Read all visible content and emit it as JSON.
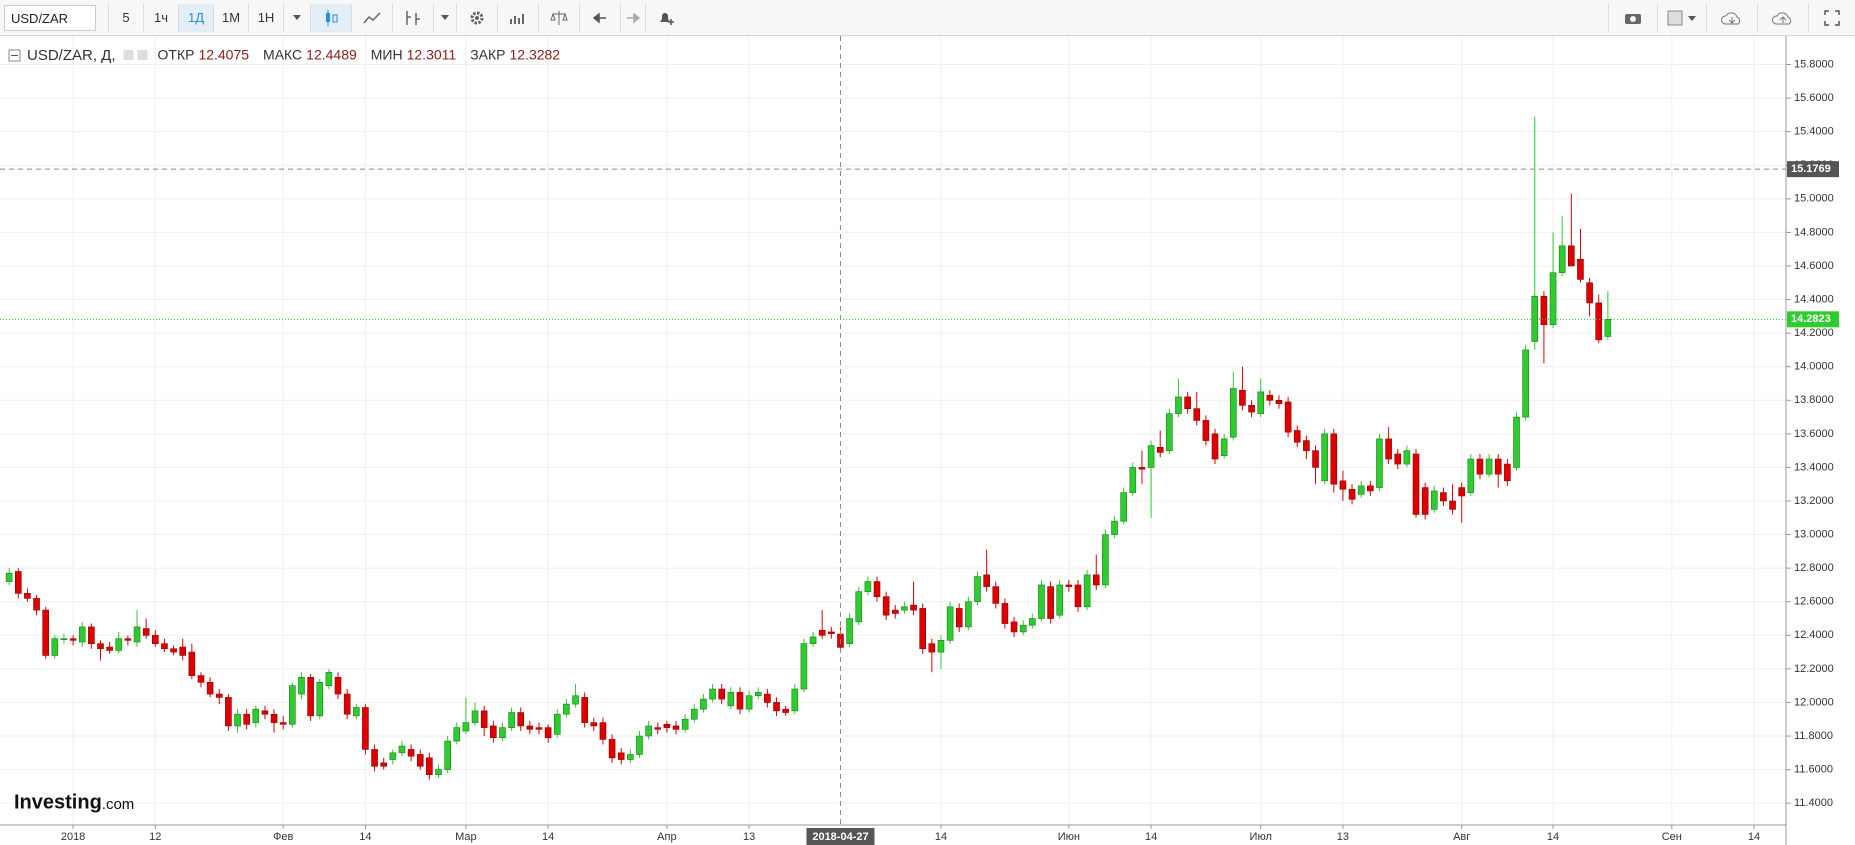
{
  "toolbar": {
    "symbol": "USD/ZAR",
    "intervals": [
      "5",
      "1ч",
      "1Д",
      "1М",
      "1Н"
    ],
    "active": 2
  },
  "chart_data": {
    "type": "candlestick",
    "legend": {
      "title": "USD/ZAR, Д,",
      "labels": [
        "ОТКР",
        "МАКС",
        "МИН",
        "ЗАКР"
      ]
    },
    "up_color": "#2ecc2e",
    "down_color": "#e00000",
    "grid": true,
    "watermark": [
      "Investing",
      ".com"
    ],
    "ylim": [
      11.27,
      15.97
    ],
    "yticks": [
      {
        "value": 11.4,
        "label": "11.4000"
      },
      {
        "value": 11.6,
        "label": "11.6000"
      },
      {
        "value": 11.8,
        "label": "11.8000"
      },
      {
        "value": 12.0,
        "label": "12.0000"
      },
      {
        "value": 12.2,
        "label": "12.2000"
      },
      {
        "value": 12.4,
        "label": "12.4000"
      },
      {
        "value": 12.6,
        "label": "12.6000"
      },
      {
        "value": 12.8,
        "label": "12.8000"
      },
      {
        "value": 13.0,
        "label": "13.0000"
      },
      {
        "value": 13.2,
        "label": "13.2000"
      },
      {
        "value": 13.4,
        "label": "13.4000"
      },
      {
        "value": 13.6,
        "label": "13.6000"
      },
      {
        "value": 13.8,
        "label": "13.8000"
      },
      {
        "value": 14.0,
        "label": "14.0000"
      },
      {
        "value": 14.2,
        "label": "14.2000"
      },
      {
        "value": 14.4,
        "label": "14.4000"
      },
      {
        "value": 14.6,
        "label": "14.6000"
      },
      {
        "value": 14.8,
        "label": "14.8000"
      },
      {
        "value": 15.0,
        "label": "15.0000"
      },
      {
        "value": 15.2,
        "label": "15.2000"
      },
      {
        "value": 15.4,
        "label": "15.4000"
      },
      {
        "value": 15.6,
        "label": "15.6000"
      },
      {
        "value": 15.8,
        "label": "15.8000"
      }
    ],
    "xlim": [
      -1,
      194.5
    ],
    "xticks": [
      {
        "value": 7,
        "label": "2018"
      },
      {
        "value": 16,
        "label": "12"
      },
      {
        "value": 30,
        "label": "Фев"
      },
      {
        "value": 39,
        "label": "14"
      },
      {
        "value": 50,
        "label": "Мар"
      },
      {
        "value": 59,
        "label": "14"
      },
      {
        "value": 72,
        "label": "Апр"
      },
      {
        "value": 81,
        "label": "13"
      },
      {
        "value": 102,
        "label": "14"
      },
      {
        "value": 116,
        "label": "Июн"
      },
      {
        "value": 125,
        "label": "14"
      },
      {
        "value": 137,
        "label": "Июл"
      },
      {
        "value": 146,
        "label": "13"
      },
      {
        "value": 159,
        "label": "Авг"
      },
      {
        "value": 169,
        "label": "14"
      },
      {
        "value": 182,
        "label": "Сен"
      },
      {
        "value": 191,
        "label": "14"
      }
    ],
    "crosshair": {
      "x": {
        "value": 91,
        "label": "2018-04-27"
      },
      "y": 15.1769
    },
    "candles": [
      [
        12.72,
        12.8,
        12.7,
        12.77
      ],
      [
        12.78,
        12.8,
        12.62,
        12.65
      ],
      [
        12.65,
        12.68,
        12.6,
        12.62
      ],
      [
        12.62,
        12.64,
        12.52,
        12.55
      ],
      [
        12.55,
        12.57,
        12.26,
        12.28
      ],
      [
        12.28,
        12.4,
        12.26,
        12.38
      ],
      [
        12.38,
        12.41,
        12.35,
        12.38
      ],
      [
        12.38,
        12.4,
        12.34,
        12.37
      ],
      [
        12.36,
        12.48,
        12.33,
        12.45
      ],
      [
        12.45,
        12.47,
        12.32,
        12.35
      ],
      [
        12.35,
        12.37,
        12.25,
        12.32
      ],
      [
        12.33,
        12.36,
        12.29,
        12.31
      ],
      [
        12.31,
        12.42,
        12.29,
        12.38
      ],
      [
        12.38,
        12.4,
        12.34,
        12.37
      ],
      [
        12.36,
        12.55,
        12.33,
        12.45
      ],
      [
        12.44,
        12.5,
        12.38,
        12.4
      ],
      [
        12.4,
        12.43,
        12.33,
        12.35
      ],
      [
        12.35,
        12.38,
        12.3,
        12.32
      ],
      [
        12.32,
        12.34,
        12.28,
        12.3
      ],
      [
        12.33,
        12.38,
        12.25,
        12.28
      ],
      [
        12.3,
        12.35,
        12.14,
        12.16
      ],
      [
        12.16,
        12.18,
        12.09,
        12.12
      ],
      [
        12.12,
        12.15,
        12.03,
        12.05
      ],
      [
        12.05,
        12.08,
        11.99,
        12.03
      ],
      [
        12.03,
        12.05,
        11.83,
        11.86
      ],
      [
        11.86,
        11.96,
        11.82,
        11.93
      ],
      [
        11.93,
        11.96,
        11.84,
        11.87
      ],
      [
        11.88,
        11.98,
        11.85,
        11.96
      ],
      [
        11.95,
        11.98,
        11.9,
        11.93
      ],
      [
        11.93,
        11.96,
        11.82,
        11.88
      ],
      [
        11.88,
        11.92,
        11.84,
        11.87
      ],
      [
        11.87,
        12.12,
        11.85,
        12.1
      ],
      [
        12.05,
        12.18,
        12.02,
        12.15
      ],
      [
        12.15,
        12.17,
        11.89,
        11.92
      ],
      [
        11.92,
        12.14,
        11.9,
        12.12
      ],
      [
        12.1,
        12.2,
        12.08,
        12.18
      ],
      [
        12.15,
        12.18,
        12.02,
        12.05
      ],
      [
        12.05,
        12.08,
        11.9,
        11.93
      ],
      [
        11.92,
        11.99,
        11.9,
        11.97
      ],
      [
        11.97,
        11.99,
        11.69,
        11.72
      ],
      [
        11.72,
        11.75,
        11.59,
        11.62
      ],
      [
        11.64,
        11.67,
        11.6,
        11.62
      ],
      [
        11.66,
        11.72,
        11.63,
        11.7
      ],
      [
        11.7,
        11.77,
        11.68,
        11.74
      ],
      [
        11.72,
        11.75,
        11.65,
        11.68
      ],
      [
        11.69,
        11.72,
        11.6,
        11.62
      ],
      [
        11.67,
        11.7,
        11.54,
        11.57
      ],
      [
        11.57,
        11.63,
        11.55,
        11.6
      ],
      [
        11.6,
        11.8,
        11.58,
        11.77
      ],
      [
        11.77,
        11.88,
        11.75,
        11.85
      ],
      [
        11.83,
        12.03,
        11.81,
        11.88
      ],
      [
        11.88,
        12.0,
        11.86,
        11.95
      ],
      [
        11.95,
        11.98,
        11.8,
        11.85
      ],
      [
        11.86,
        11.89,
        11.76,
        11.79
      ],
      [
        11.79,
        11.88,
        11.77,
        11.85
      ],
      [
        11.85,
        11.97,
        11.83,
        11.94
      ],
      [
        11.94,
        11.97,
        11.83,
        11.86
      ],
      [
        11.86,
        11.89,
        11.81,
        11.84
      ],
      [
        11.85,
        11.88,
        11.81,
        11.84
      ],
      [
        11.85,
        11.87,
        11.76,
        11.79
      ],
      [
        11.81,
        11.96,
        11.79,
        11.93
      ],
      [
        11.93,
        12.02,
        11.91,
        11.99
      ],
      [
        11.99,
        12.11,
        11.97,
        12.04
      ],
      [
        12.03,
        12.06,
        11.85,
        11.88
      ],
      [
        11.88,
        11.91,
        11.83,
        11.86
      ],
      [
        11.88,
        11.91,
        11.75,
        11.78
      ],
      [
        11.78,
        11.81,
        11.64,
        11.67
      ],
      [
        11.7,
        11.73,
        11.63,
        11.66
      ],
      [
        11.66,
        11.72,
        11.64,
        11.69
      ],
      [
        11.69,
        11.83,
        11.67,
        11.8
      ],
      [
        11.8,
        11.89,
        11.78,
        11.86
      ],
      [
        11.85,
        11.88,
        11.81,
        11.84
      ],
      [
        11.87,
        11.89,
        11.82,
        11.85
      ],
      [
        11.86,
        11.89,
        11.81,
        11.84
      ],
      [
        11.84,
        11.93,
        11.82,
        11.9
      ],
      [
        11.9,
        11.99,
        11.88,
        11.96
      ],
      [
        11.96,
        12.05,
        11.94,
        12.02
      ],
      [
        12.02,
        12.11,
        12.0,
        12.08
      ],
      [
        12.08,
        12.11,
        11.99,
        12.02
      ],
      [
        11.98,
        12.09,
        11.96,
        12.06
      ],
      [
        12.06,
        12.09,
        11.93,
        11.96
      ],
      [
        11.96,
        12.07,
        11.94,
        12.04
      ],
      [
        12.04,
        12.09,
        12.02,
        12.06
      ],
      [
        12.05,
        12.08,
        11.97,
        12.0
      ],
      [
        12.0,
        12.03,
        11.92,
        11.95
      ],
      [
        11.96,
        11.98,
        11.92,
        11.94
      ],
      [
        11.95,
        12.11,
        11.93,
        12.08
      ],
      [
        12.08,
        12.38,
        12.06,
        12.35
      ],
      [
        12.35,
        12.42,
        12.33,
        12.39
      ],
      [
        12.43,
        12.55,
        12.38,
        12.4
      ],
      [
        12.42,
        12.45,
        12.38,
        12.41
      ],
      [
        12.4075,
        12.4489,
        12.3011,
        12.3282
      ],
      [
        12.35,
        12.53,
        12.33,
        12.5
      ],
      [
        12.48,
        12.69,
        12.46,
        12.66
      ],
      [
        12.66,
        12.75,
        12.64,
        12.72
      ],
      [
        12.72,
        12.75,
        12.6,
        12.63
      ],
      [
        12.63,
        12.66,
        12.49,
        12.52
      ],
      [
        12.55,
        12.58,
        12.5,
        12.53
      ],
      [
        12.55,
        12.6,
        12.53,
        12.57
      ],
      [
        12.58,
        12.72,
        12.52,
        12.55
      ],
      [
        12.56,
        12.59,
        12.29,
        12.32
      ],
      [
        12.35,
        12.38,
        12.18,
        12.3
      ],
      [
        12.3,
        12.4,
        12.2,
        12.37
      ],
      [
        12.37,
        12.6,
        12.35,
        12.57
      ],
      [
        12.56,
        12.59,
        12.42,
        12.45
      ],
      [
        12.45,
        12.63,
        12.43,
        12.6
      ],
      [
        12.6,
        12.78,
        12.58,
        12.75
      ],
      [
        12.76,
        12.91,
        12.66,
        12.69
      ],
      [
        12.69,
        12.72,
        12.56,
        12.59
      ],
      [
        12.59,
        12.62,
        12.44,
        12.47
      ],
      [
        12.48,
        12.51,
        12.39,
        12.42
      ],
      [
        12.42,
        12.49,
        12.4,
        12.46
      ],
      [
        12.46,
        12.53,
        12.44,
        12.5
      ],
      [
        12.5,
        12.73,
        12.48,
        12.7
      ],
      [
        12.69,
        12.72,
        12.47,
        12.5
      ],
      [
        12.52,
        12.73,
        12.5,
        12.7
      ],
      [
        12.7,
        12.73,
        12.66,
        12.69
      ],
      [
        12.7,
        12.73,
        12.54,
        12.57
      ],
      [
        12.57,
        12.79,
        12.55,
        12.76
      ],
      [
        12.76,
        12.88,
        12.67,
        12.7
      ],
      [
        12.7,
        13.03,
        12.68,
        13.0
      ],
      [
        13.0,
        13.11,
        12.98,
        13.08
      ],
      [
        13.08,
        13.28,
        13.06,
        13.25
      ],
      [
        13.25,
        13.43,
        13.23,
        13.4
      ],
      [
        13.4,
        13.5,
        13.3,
        13.39
      ],
      [
        13.4,
        13.56,
        13.1,
        13.53
      ],
      [
        13.52,
        13.62,
        13.46,
        13.49
      ],
      [
        13.5,
        13.75,
        13.48,
        13.72
      ],
      [
        13.72,
        13.93,
        13.7,
        13.82
      ],
      [
        13.82,
        13.85,
        13.72,
        13.75
      ],
      [
        13.75,
        13.85,
        13.65,
        13.68
      ],
      [
        13.68,
        13.71,
        13.53,
        13.56
      ],
      [
        13.6,
        13.63,
        13.42,
        13.45
      ],
      [
        13.47,
        13.6,
        13.45,
        13.57
      ],
      [
        13.58,
        13.97,
        13.56,
        13.87
      ],
      [
        13.86,
        14.0,
        13.74,
        13.77
      ],
      [
        13.77,
        13.8,
        13.7,
        13.73
      ],
      [
        13.72,
        13.93,
        13.7,
        13.85
      ],
      [
        13.83,
        13.86,
        13.77,
        13.8
      ],
      [
        13.8,
        13.83,
        13.75,
        13.78
      ],
      [
        13.79,
        13.82,
        13.58,
        13.61
      ],
      [
        13.62,
        13.65,
        13.52,
        13.55
      ],
      [
        13.56,
        13.59,
        13.45,
        13.5
      ],
      [
        13.5,
        13.53,
        13.3,
        13.4
      ],
      [
        13.32,
        13.63,
        13.3,
        13.6
      ],
      [
        13.6,
        13.63,
        13.25,
        13.3
      ],
      [
        13.32,
        13.38,
        13.2,
        13.27
      ],
      [
        13.27,
        13.3,
        13.18,
        13.21
      ],
      [
        13.24,
        13.32,
        13.22,
        13.29
      ],
      [
        13.29,
        13.32,
        13.23,
        13.26
      ],
      [
        13.28,
        13.6,
        13.26,
        13.57
      ],
      [
        13.57,
        13.64,
        13.42,
        13.45
      ],
      [
        13.48,
        13.51,
        13.39,
        13.42
      ],
      [
        13.42,
        13.53,
        13.4,
        13.5
      ],
      [
        13.48,
        13.51,
        13.1,
        13.12
      ],
      [
        13.28,
        13.31,
        13.09,
        13.12
      ],
      [
        13.15,
        13.29,
        13.13,
        13.26
      ],
      [
        13.25,
        13.28,
        13.17,
        13.2
      ],
      [
        13.2,
        13.3,
        13.12,
        13.15
      ],
      [
        13.28,
        13.31,
        13.07,
        13.23
      ],
      [
        13.25,
        13.48,
        13.23,
        13.45
      ],
      [
        13.45,
        13.48,
        13.33,
        13.36
      ],
      [
        13.36,
        13.48,
        13.34,
        13.45
      ],
      [
        13.45,
        13.48,
        13.28,
        13.36
      ],
      [
        13.42,
        13.45,
        13.29,
        13.32
      ],
      [
        13.4,
        13.73,
        13.38,
        13.7
      ],
      [
        13.7,
        14.13,
        13.68,
        14.1
      ],
      [
        14.15,
        15.49,
        14.1,
        14.42
      ],
      [
        14.42,
        14.45,
        14.02,
        14.25
      ],
      [
        14.25,
        14.8,
        14.23,
        14.56
      ],
      [
        14.56,
        14.9,
        14.54,
        14.72
      ],
      [
        14.72,
        15.03,
        14.6,
        14.6
      ],
      [
        14.64,
        14.82,
        14.5,
        14.52
      ],
      [
        14.5,
        14.53,
        14.3,
        14.38
      ],
      [
        14.38,
        14.43,
        14.14,
        14.16
      ],
      [
        14.18,
        14.45,
        14.16,
        14.2823
      ]
    ]
  }
}
